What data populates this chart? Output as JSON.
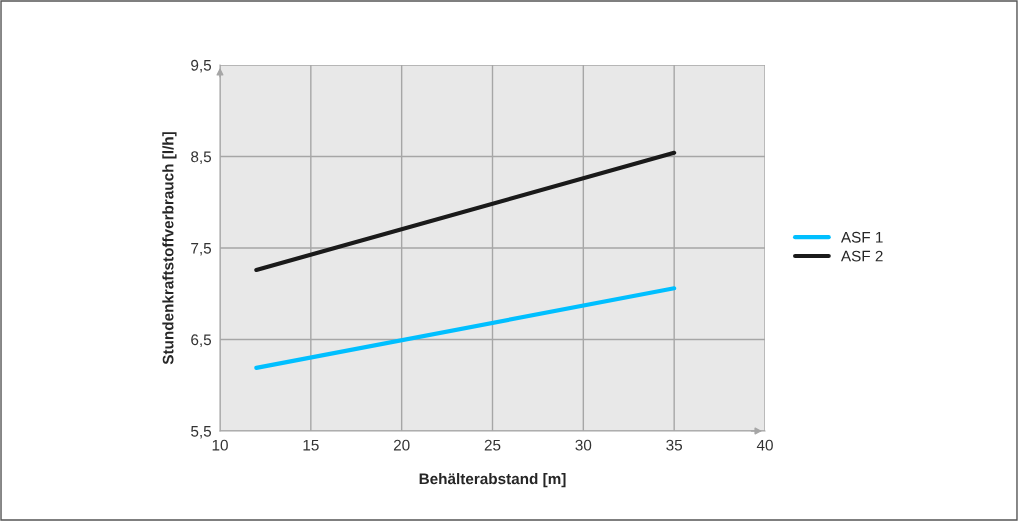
{
  "chart_data": {
    "type": "line",
    "xlabel": "Behälterabstand [m]",
    "ylabel": "Stundenkraftstoffverbrauch [l/h]",
    "x": [
      12,
      35
    ],
    "series": [
      {
        "name": "ASF 1",
        "color": "#00bfff",
        "values": [
          6.19,
          7.06
        ]
      },
      {
        "name": "ASF 2",
        "color": "#1a1a1a",
        "values": [
          7.26,
          8.54
        ]
      }
    ],
    "xlim": [
      10,
      40
    ],
    "xticks": [
      10,
      15,
      20,
      25,
      30,
      35,
      40
    ],
    "ylim": [
      5.5,
      9.5
    ],
    "yticks": [
      {
        "value": 5.5,
        "label": "5,5"
      },
      {
        "value": 6.5,
        "label": "6,5"
      },
      {
        "value": 7.5,
        "label": "7,5"
      },
      {
        "value": 8.5,
        "label": "8,5"
      },
      {
        "value": 9.5,
        "label": "9,5"
      }
    ],
    "grid": true,
    "legend": "right",
    "marker": "none",
    "line_style": "solid"
  }
}
